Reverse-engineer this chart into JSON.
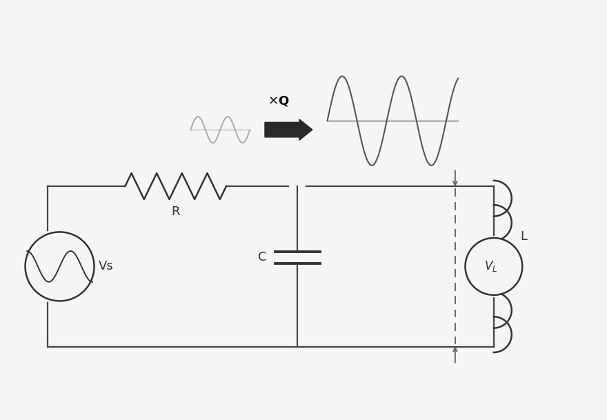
{
  "bg_color": "#f5f5f5",
  "wire_color": "#444444",
  "component_color": "#333333",
  "sine_color_small": "#aaaaaa",
  "sine_color_large": "#555555",
  "arrow_color": "#2a2a2a",
  "dashed_color": "#666666",
  "label_R": "R",
  "label_C": "C",
  "label_L": "L",
  "label_Vs": "Vs",
  "label_VL": "V",
  "label_VL_sub": "L",
  "label_xQ": "×",
  "label_Q": "Q",
  "fig_width": 8.8,
  "fig_height": 6.09,
  "dpi": 100
}
